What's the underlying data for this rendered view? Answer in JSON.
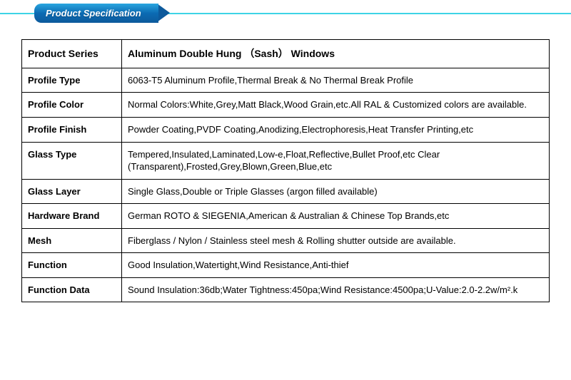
{
  "colors": {
    "cyan_line": "#3ed4e6",
    "badge_gradient_top": "#2aa6e0",
    "badge_gradient_mid": "#0b6bb3",
    "badge_gradient_bottom": "#0d5a9c",
    "table_border": "#000000",
    "text": "#000000",
    "background": "#ffffff"
  },
  "header": {
    "badge_text": "Product Specification"
  },
  "table": {
    "title_label": "Product Series",
    "title_value": "Aluminum Double Hung （Sash） Windows",
    "rows": [
      {
        "label": "Profile Type",
        "value": "6063-T5 Aluminum Profile,Thermal Break & No Thermal Break Profile"
      },
      {
        "label": "Profile Color",
        "value": "Normal Colors:White,Grey,Matt Black,Wood Grain,etc.All RAL & Customized colors are available."
      },
      {
        "label": "Profile Finish",
        "value": "Powder Coating,PVDF Coating,Anodizing,Electrophoresis,Heat Transfer Printing,etc"
      },
      {
        "label": "Glass Type",
        "value": "Tempered,Insulated,Laminated,Low-e,Float,Reflective,Bullet Proof,etc Clear (Transparent),Frosted,Grey,Blown,Green,Blue,etc"
      },
      {
        "label": "Glass Layer",
        "value": "Single Glass,Double or Triple Glasses (argon filled available)"
      },
      {
        "label": "Hardware Brand",
        "value": "German ROTO & SIEGENIA,American & Australian & Chinese Top Brands,etc"
      },
      {
        "label": "Mesh",
        "value": "Fiberglass / Nylon / Stainless steel mesh & Rolling shutter outside are available."
      },
      {
        "label": "Function",
        "value": "Good Insulation,Watertight,Wind Resistance,Anti-thief"
      },
      {
        "label": "Function Data",
        "value": "Sound Insulation:36db;Water Tightness:450pa;Wind Resistance:4500pa;U-Value:2.0-2.2w/m².k"
      }
    ]
  }
}
